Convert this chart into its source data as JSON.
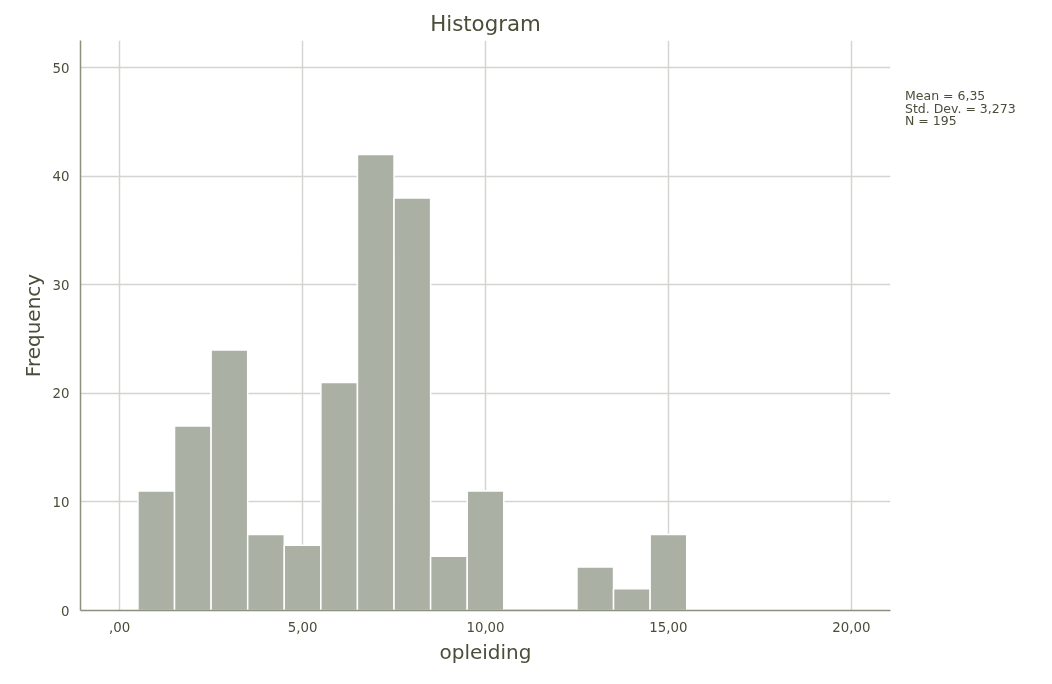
{
  "chart_data": {
    "type": "histogram",
    "title": "Histogram",
    "xlabel": "opleiding",
    "ylabel": "Frequency",
    "bins": [
      0.5,
      1.5,
      2.5,
      3.5,
      4.5,
      5.5,
      6.5,
      7.5,
      8.5,
      9.5,
      10.5,
      11.5,
      12.5,
      13.5,
      14.5,
      15.5
    ],
    "values": [
      11,
      17,
      24,
      7,
      6,
      21,
      42,
      38,
      5,
      11,
      0,
      0,
      4,
      2,
      7
    ],
    "color": "#aab0a4",
    "xlim": [
      -1.07,
      21.07
    ],
    "ylim": [
      0,
      52.5
    ],
    "xticks": [
      {
        "value": 0,
        "label": ",00"
      },
      {
        "value": 5,
        "label": "5,00"
      },
      {
        "value": 10,
        "label": "10,00"
      },
      {
        "value": 15,
        "label": "15,00"
      },
      {
        "value": 20,
        "label": "20,00"
      }
    ],
    "yticks": [
      0,
      10,
      20,
      30,
      40,
      50
    ],
    "grid": true,
    "annotations": [
      "Mean = 6,35",
      "Std. Dev. = 3,273",
      "N = 195"
    ]
  }
}
